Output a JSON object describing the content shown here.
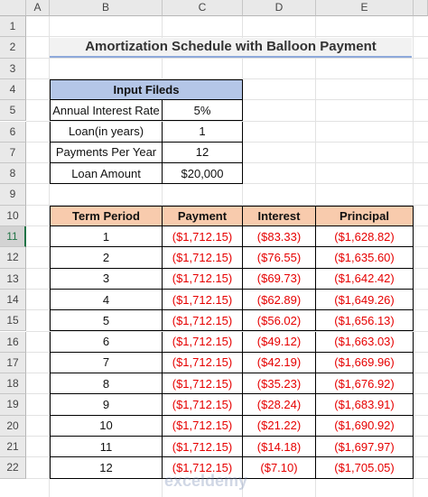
{
  "columns": [
    "A",
    "B",
    "C",
    "D",
    "E"
  ],
  "rows": [
    "1",
    "2",
    "3",
    "4",
    "5",
    "6",
    "7",
    "8",
    "9",
    "10",
    "11",
    "12",
    "13",
    "14",
    "15",
    "16",
    "17",
    "18",
    "19",
    "20",
    "21",
    "22"
  ],
  "active_row": "11",
  "title": "Amortization Schedule with Balloon Payment",
  "input_table": {
    "header": "Input Fileds",
    "rows": [
      {
        "label": "Annual Interest Rate",
        "value": "5%"
      },
      {
        "label": "Loan(in years)",
        "value": "1"
      },
      {
        "label": "Payments Per Year",
        "value": "12"
      },
      {
        "label": "Loan Amount",
        "value": "$20,000"
      }
    ]
  },
  "schedule": {
    "headers": [
      "Term Period",
      "Payment",
      "Interest",
      "Principal"
    ],
    "rows": [
      [
        "1",
        "($1,712.15)",
        "($83.33)",
        "($1,628.82)"
      ],
      [
        "2",
        "($1,712.15)",
        "($76.55)",
        "($1,635.60)"
      ],
      [
        "3",
        "($1,712.15)",
        "($69.73)",
        "($1,642.42)"
      ],
      [
        "4",
        "($1,712.15)",
        "($62.89)",
        "($1,649.26)"
      ],
      [
        "5",
        "($1,712.15)",
        "($56.02)",
        "($1,656.13)"
      ],
      [
        "6",
        "($1,712.15)",
        "($49.12)",
        "($1,663.03)"
      ],
      [
        "7",
        "($1,712.15)",
        "($42.19)",
        "($1,669.96)"
      ],
      [
        "8",
        "($1,712.15)",
        "($35.23)",
        "($1,676.92)"
      ],
      [
        "9",
        "($1,712.15)",
        "($28.24)",
        "($1,683.91)"
      ],
      [
        "10",
        "($1,712.15)",
        "($21.22)",
        "($1,690.92)"
      ],
      [
        "11",
        "($1,712.15)",
        "($14.18)",
        "($1,697.97)"
      ],
      [
        "12",
        "($1,712.15)",
        "($7.10)",
        "($1,705.05)"
      ]
    ]
  },
  "watermark": "exceldemy",
  "colors": {
    "title_underline": "#8ea9db",
    "input_header": "#b4c6e7",
    "schedule_header": "#f8cbad",
    "negative": "#e60000",
    "active_row_accent": "#217346"
  }
}
